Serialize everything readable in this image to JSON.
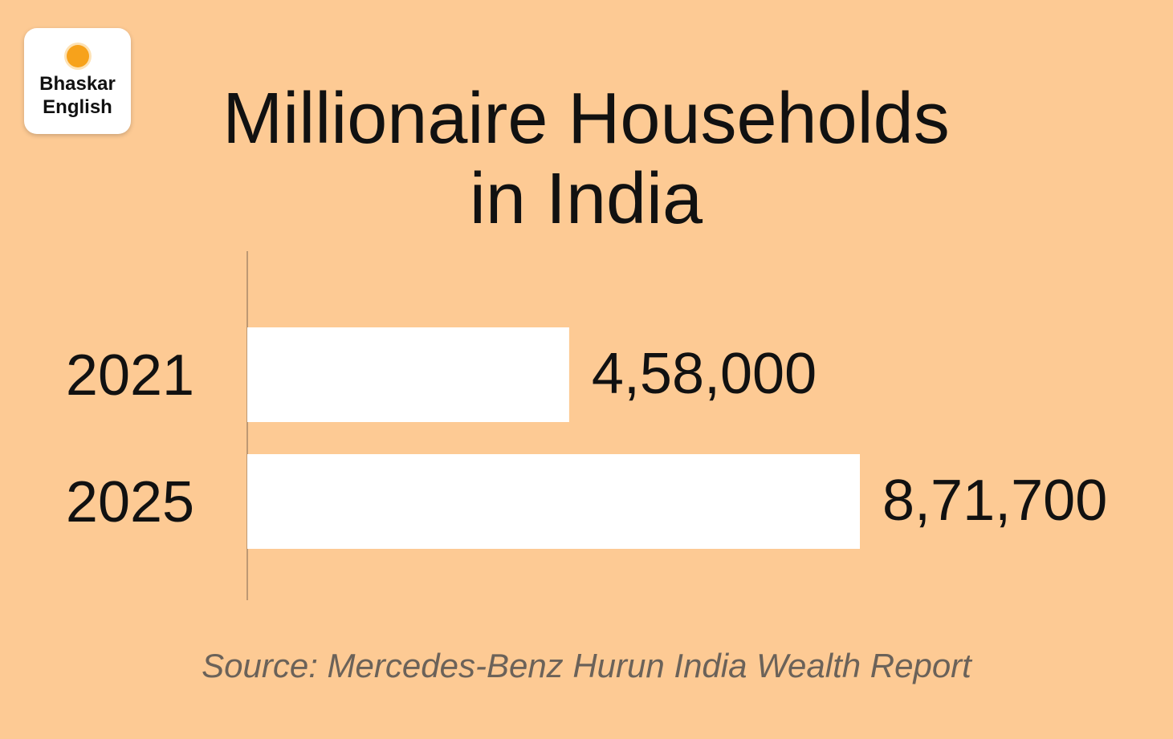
{
  "brand": {
    "lines": [
      "Bhaskar",
      "English"
    ]
  },
  "chart_data": {
    "type": "hbar",
    "title": "Millionaire Households in India",
    "categories": [
      "2021",
      "2025"
    ],
    "values": [
      458000,
      871700
    ],
    "value_labels": [
      "4,58,000",
      "8,71,700"
    ],
    "color": "#ffffff",
    "source": "Source: Mercedes-Benz Hurun India Wealth Report"
  }
}
